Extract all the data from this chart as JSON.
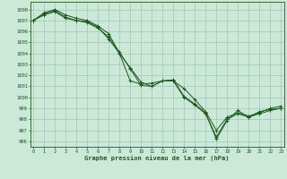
{
  "title": "Graphe pression niveau de la mer (hPa)",
  "bg_color": "#cce8d8",
  "grid_color": "#99ccb0",
  "line_color": "#1a5c1a",
  "ylim": [
    995.5,
    1008.7
  ],
  "xlim": [
    -0.3,
    23.3
  ],
  "yticks": [
    996,
    997,
    998,
    999,
    1000,
    1001,
    1002,
    1003,
    1004,
    1005,
    1006,
    1007,
    1008
  ],
  "xticks": [
    0,
    1,
    2,
    3,
    4,
    5,
    6,
    7,
    8,
    9,
    10,
    11,
    12,
    13,
    14,
    15,
    16,
    17,
    18,
    19,
    20,
    21,
    22,
    23
  ],
  "series": [
    [
      1007.0,
      1007.5,
      1007.8,
      1007.2,
      1007.0,
      1006.8,
      1006.3,
      1005.5,
      1004.1,
      1002.6,
      1001.1,
      1001.0,
      1001.5,
      1001.5,
      1000.8,
      999.8,
      998.7,
      997.0,
      998.2,
      998.6,
      998.3,
      998.6,
      999.0,
      999.2
    ],
    [
      1007.0,
      1007.6,
      1007.9,
      1007.3,
      1007.0,
      1006.9,
      1006.4,
      1005.3,
      1004.0,
      1002.7,
      1001.4,
      1001.0,
      1001.5,
      1001.6,
      1000.1,
      999.4,
      998.6,
      996.2,
      997.9,
      998.8,
      998.2,
      998.7,
      998.9,
      999.0
    ],
    [
      1007.0,
      1007.7,
      1008.0,
      1007.5,
      1007.2,
      1007.0,
      1006.5,
      1005.8,
      1004.0,
      1001.5,
      1001.2,
      1001.3,
      1001.5,
      1001.5,
      1000.0,
      999.3,
      998.5,
      996.4,
      998.0,
      998.5,
      998.2,
      998.5,
      998.8,
      999.0
    ]
  ]
}
